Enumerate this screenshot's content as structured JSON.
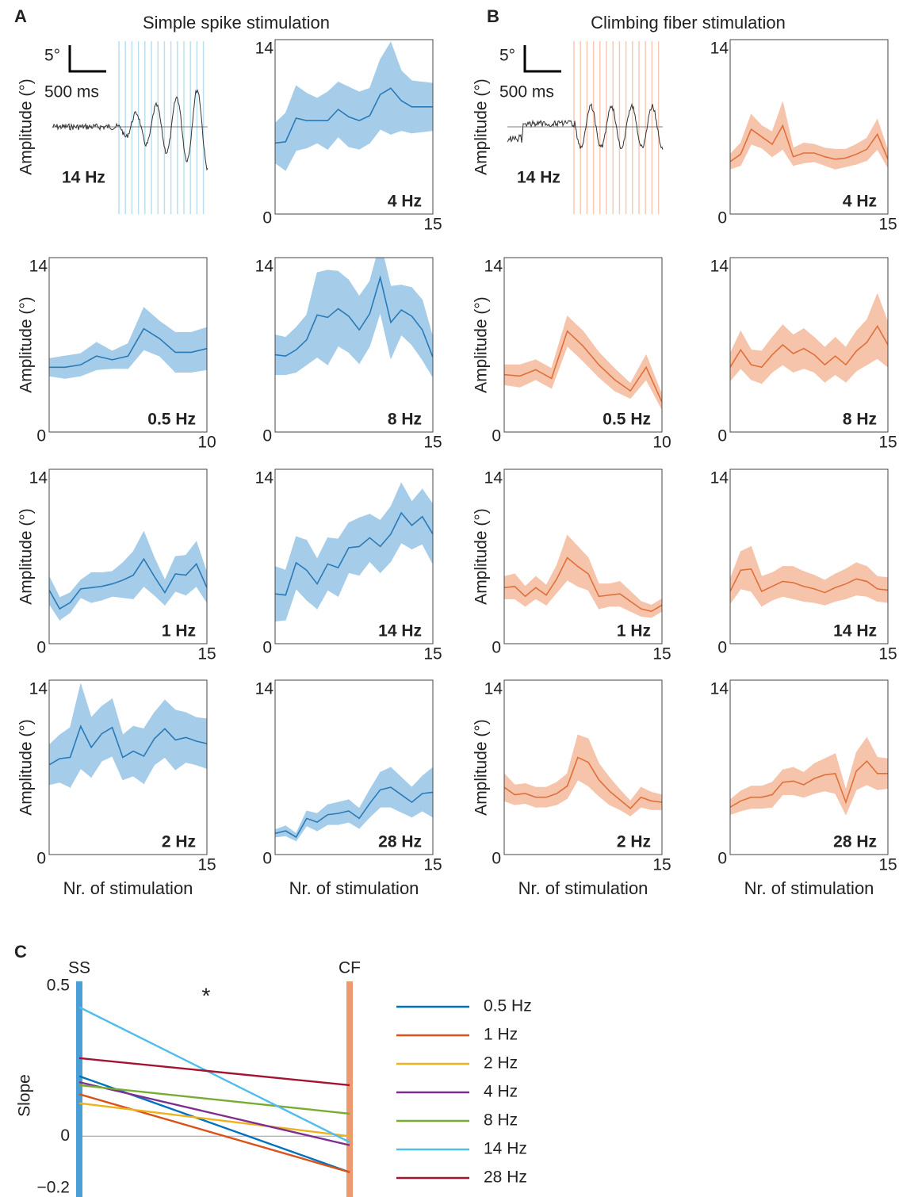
{
  "labels": {
    "A": "A",
    "B": "B",
    "C": "C",
    "ss_title": "Simple spike stimulation",
    "cf_title": "Climbing fiber stimulation"
  },
  "examples": [
    {
      "scale_amp": "5°",
      "scale_time": "500 ms",
      "freq": "14 Hz",
      "ylabel": "Amplitude (°)"
    },
    {
      "scale_amp": "5°",
      "scale_time": "500 ms",
      "freq": "14 Hz",
      "ylabel": "Amplitude (°)"
    }
  ],
  "chart_data": [
    {
      "type": "line",
      "label": "4 Hz",
      "x": [
        0,
        1,
        2,
        3,
        4,
        5,
        6,
        7,
        8,
        9,
        10,
        11,
        12,
        13,
        14,
        15
      ],
      "color": "#2a7ab8",
      "band_color": "#a5cde9",
      "values": [
        5.7,
        5.8,
        7.7,
        7.5,
        7.5,
        7.5,
        8.4,
        7.8,
        7.5,
        7.9,
        9.6,
        10.1,
        9.1,
        8.6,
        8.6,
        8.6
      ],
      "errors": [
        1.6,
        2.3,
        2.6,
        2.2,
        1.8,
        2.3,
        2.2,
        2.4,
        2.3,
        2.2,
        2.8,
        3.7,
        2.4,
        2.1,
        2.0,
        1.9
      ],
      "xlim": [
        0,
        15
      ],
      "ylim": [
        0,
        14
      ],
      "xticks": [
        15
      ],
      "yticks": [
        0,
        14
      ]
    },
    {
      "type": "line",
      "label": "0.5 Hz",
      "x": [
        0,
        1,
        2,
        3,
        4,
        5,
        6,
        7,
        8,
        9,
        10
      ],
      "color": "#2a7ab8",
      "band_color": "#a5cde9",
      "values": [
        5.2,
        5.2,
        5.4,
        6.1,
        5.8,
        6.1,
        8.3,
        7.5,
        6.4,
        6.4,
        6.7
      ],
      "errors": [
        0.7,
        0.9,
        0.9,
        1.1,
        0.7,
        1.0,
        1.7,
        1.4,
        1.6,
        1.6,
        1.7
      ],
      "xlim": [
        0,
        10
      ],
      "ylim": [
        0,
        14
      ],
      "xticks": [
        10
      ],
      "yticks": [
        0,
        14
      ],
      "ylabel": "Amplitude (°)"
    },
    {
      "type": "line",
      "label": "8 Hz",
      "x": [
        0,
        1,
        2,
        3,
        4,
        5,
        6,
        7,
        8,
        9,
        10,
        11,
        12,
        13,
        14,
        15
      ],
      "color": "#2a7ab8",
      "band_color": "#a5cde9",
      "values": [
        6.2,
        6.1,
        6.6,
        7.4,
        9.4,
        9.2,
        9.9,
        9.3,
        8.2,
        9.5,
        12.4,
        8.8,
        9.8,
        9.3,
        8.2,
        6.0
      ],
      "errors": [
        1.6,
        1.5,
        1.8,
        2.0,
        3.4,
        3.8,
        3.0,
        2.9,
        2.7,
        2.6,
        2.8,
        2.9,
        2.0,
        2.3,
        2.4,
        1.6
      ],
      "xlim": [
        0,
        15
      ],
      "ylim": [
        0,
        14
      ],
      "xticks": [
        15
      ],
      "yticks": [
        0,
        14
      ]
    },
    {
      "type": "line",
      "label": "1 Hz",
      "x": [
        0,
        1,
        2,
        3,
        4,
        5,
        6,
        7,
        8,
        9,
        10,
        11,
        12,
        13,
        14,
        15
      ],
      "color": "#2a7ab8",
      "band_color": "#a5cde9",
      "values": [
        4.3,
        2.8,
        3.3,
        4.4,
        4.5,
        4.6,
        4.8,
        5.1,
        5.5,
        6.8,
        5.4,
        4.1,
        5.6,
        5.5,
        6.4,
        4.5
      ],
      "errors": [
        1.1,
        0.9,
        0.8,
        0.7,
        1.2,
        1.1,
        1.0,
        1.4,
        1.9,
        2.2,
        1.5,
        1.0,
        1.4,
        1.6,
        1.8,
        1.2
      ],
      "xlim": [
        0,
        15
      ],
      "ylim": [
        0,
        14
      ],
      "xticks": [
        15
      ],
      "yticks": [
        0,
        14
      ],
      "ylabel": "Amplitude (°)"
    },
    {
      "type": "line",
      "label": "14 Hz",
      "x": [
        0,
        1,
        2,
        3,
        4,
        5,
        6,
        7,
        8,
        9,
        10,
        11,
        12,
        13,
        14,
        15
      ],
      "color": "#2a7ab8",
      "band_color": "#a5cde9",
      "values": [
        4.0,
        3.9,
        6.5,
        5.9,
        4.8,
        6.4,
        6.1,
        7.7,
        7.8,
        8.5,
        7.8,
        8.8,
        10.5,
        9.5,
        10.2,
        8.8
      ],
      "errors": [
        2.2,
        2.0,
        2.1,
        2.4,
        2.0,
        2.1,
        2.3,
        2.0,
        2.3,
        1.9,
        2.1,
        2.2,
        2.4,
        1.9,
        2.2,
        2.4
      ],
      "xlim": [
        0,
        15
      ],
      "ylim": [
        0,
        14
      ],
      "xticks": [
        15
      ],
      "yticks": [
        0,
        14
      ]
    },
    {
      "type": "line",
      "label": "2 Hz",
      "x": [
        0,
        1,
        2,
        3,
        4,
        5,
        6,
        7,
        8,
        9,
        10,
        11,
        12,
        13,
        14,
        15
      ],
      "color": "#2a7ab8",
      "band_color": "#a5cde9",
      "values": [
        7.2,
        7.7,
        7.8,
        10.3,
        8.6,
        9.7,
        10.2,
        7.8,
        8.3,
        7.9,
        9.3,
        10.1,
        9.2,
        9.4,
        9.1,
        8.9
      ],
      "errors": [
        1.6,
        1.9,
        2.4,
        3.4,
        2.4,
        2.2,
        2.3,
        1.8,
        2.0,
        2.2,
        2.1,
        2.3,
        2.4,
        2.0,
        1.9,
        2.0
      ],
      "xlim": [
        0,
        15
      ],
      "ylim": [
        0,
        14
      ],
      "xticks": [
        15
      ],
      "yticks": [
        0,
        14
      ],
      "ylabel": "Amplitude (°)",
      "xlabel": "Nr. of stimulation"
    },
    {
      "type": "line",
      "label": "28 Hz",
      "x": [
        0,
        1,
        2,
        3,
        4,
        5,
        6,
        7,
        8,
        9,
        10,
        11,
        12,
        13,
        14,
        15
      ],
      "color": "#2a7ab8",
      "band_color": "#a5cde9",
      "values": [
        1.7,
        1.9,
        1.4,
        2.9,
        2.6,
        3.2,
        3.3,
        3.5,
        2.9,
        4.1,
        5.2,
        5.4,
        4.8,
        4.2,
        4.9,
        5.0
      ],
      "errors": [
        0.3,
        0.4,
        0.3,
        0.6,
        0.7,
        0.8,
        0.9,
        0.9,
        0.8,
        1.1,
        1.4,
        1.6,
        1.4,
        1.2,
        1.4,
        2.0
      ],
      "xlim": [
        0,
        15
      ],
      "ylim": [
        0,
        14
      ],
      "xticks": [
        15
      ],
      "yticks": [
        0,
        14
      ],
      "xlabel": "Nr. of stimulation"
    },
    {
      "type": "line",
      "label": "4 Hz",
      "x": [
        0,
        1,
        2,
        3,
        4,
        5,
        6,
        7,
        8,
        9,
        10,
        11,
        12,
        13,
        14,
        15
      ],
      "color": "#e0703a",
      "band_color": "#f6c4ab",
      "values": [
        4.2,
        4.8,
        6.8,
        6.2,
        5.6,
        7.1,
        4.6,
        4.9,
        4.9,
        4.6,
        4.4,
        4.5,
        4.8,
        5.2,
        6.4,
        4.4
      ],
      "errors": [
        0.6,
        0.9,
        1.2,
        0.9,
        1.0,
        1.9,
        0.7,
        0.8,
        0.7,
        0.7,
        0.8,
        0.7,
        0.8,
        0.9,
        1.2,
        0.7
      ],
      "xlim": [
        0,
        15
      ],
      "ylim": [
        0,
        14
      ],
      "xticks": [
        15
      ],
      "yticks": [
        0,
        14
      ]
    },
    {
      "type": "line",
      "label": "0.5 Hz",
      "x": [
        0,
        1,
        2,
        3,
        4,
        5,
        6,
        7,
        8,
        9,
        10
      ],
      "color": "#e0703a",
      "band_color": "#f6c4ab",
      "values": [
        4.6,
        4.5,
        5.0,
        4.3,
        8.1,
        6.9,
        5.4,
        4.2,
        3.3,
        5.2,
        2.4
      ],
      "errors": [
        0.8,
        0.9,
        0.8,
        0.8,
        1.2,
        1.2,
        1.0,
        0.9,
        0.6,
        1.0,
        0.6
      ],
      "xlim": [
        0,
        10
      ],
      "ylim": [
        0,
        14
      ],
      "xticks": [
        10
      ],
      "yticks": [
        0,
        14
      ],
      "ylabel": "Amplitude (°)"
    },
    {
      "type": "line",
      "label": "8 Hz",
      "x": [
        0,
        1,
        2,
        3,
        4,
        5,
        6,
        7,
        8,
        9,
        10,
        11,
        12,
        13,
        14,
        15
      ],
      "color": "#e0703a",
      "band_color": "#f6c4ab",
      "values": [
        5.2,
        6.6,
        5.4,
        5.2,
        6.2,
        7.0,
        6.3,
        6.7,
        6.2,
        5.4,
        6.1,
        5.4,
        6.5,
        7.2,
        8.5,
        7.0
      ],
      "errors": [
        1.1,
        1.5,
        1.2,
        1.3,
        1.4,
        1.6,
        1.5,
        1.6,
        1.4,
        1.4,
        1.5,
        1.4,
        1.6,
        1.8,
        2.6,
        1.8
      ],
      "xlim": [
        0,
        15
      ],
      "ylim": [
        0,
        14
      ],
      "xticks": [
        15
      ],
      "yticks": [
        0,
        14
      ]
    },
    {
      "type": "line",
      "label": "1 Hz",
      "x": [
        0,
        1,
        2,
        3,
        4,
        5,
        6,
        7,
        8,
        9,
        10,
        11,
        12,
        13,
        14,
        15
      ],
      "color": "#e0703a",
      "band_color": "#f6c4ab",
      "values": [
        4.5,
        4.6,
        3.8,
        4.5,
        3.9,
        5.2,
        6.9,
        6.2,
        5.6,
        3.8,
        3.9,
        4.0,
        3.4,
        2.8,
        2.6,
        3.1
      ],
      "errors": [
        0.9,
        1.0,
        0.8,
        0.9,
        0.8,
        1.1,
        1.8,
        1.6,
        1.3,
        1.0,
        0.9,
        1.0,
        0.8,
        0.6,
        0.5,
        0.5
      ],
      "xlim": [
        0,
        15
      ],
      "ylim": [
        0,
        14
      ],
      "xticks": [
        15
      ],
      "yticks": [
        0,
        14
      ],
      "ylabel": "Amplitude (°)"
    },
    {
      "type": "line",
      "label": "14 Hz",
      "x": [
        0,
        1,
        2,
        3,
        4,
        5,
        6,
        7,
        8,
        9,
        10,
        11,
        12,
        13,
        14,
        15
      ],
      "color": "#e0703a",
      "band_color": "#f6c4ab",
      "values": [
        4.2,
        5.9,
        6.0,
        4.2,
        4.6,
        5.0,
        4.9,
        4.6,
        4.4,
        4.1,
        4.5,
        4.8,
        5.2,
        5.0,
        4.4,
        4.3
      ],
      "errors": [
        1.0,
        1.5,
        1.8,
        1.2,
        1.1,
        1.2,
        1.3,
        1.2,
        1.1,
        1.0,
        1.1,
        1.2,
        1.3,
        1.2,
        1.0,
        1.0
      ],
      "xlim": [
        0,
        15
      ],
      "ylim": [
        0,
        14
      ],
      "xticks": [
        15
      ],
      "yticks": [
        0,
        14
      ]
    },
    {
      "type": "line",
      "label": "2 Hz",
      "x": [
        0,
        1,
        2,
        3,
        4,
        5,
        6,
        7,
        8,
        9,
        10,
        11,
        12,
        13,
        14,
        15
      ],
      "color": "#e0703a",
      "band_color": "#f6c4ab",
      "values": [
        5.4,
        4.8,
        4.9,
        4.6,
        4.6,
        4.9,
        5.5,
        7.8,
        7.4,
        6.0,
        5.1,
        4.4,
        3.7,
        4.6,
        4.3,
        4.2
      ],
      "errors": [
        1.1,
        0.8,
        0.8,
        0.8,
        0.8,
        0.9,
        1.0,
        1.8,
        1.9,
        1.3,
        1.1,
        0.8,
        0.6,
        0.8,
        0.7,
        0.6
      ],
      "xlim": [
        0,
        15
      ],
      "ylim": [
        0,
        14
      ],
      "xticks": [
        15
      ],
      "yticks": [
        0,
        14
      ],
      "ylabel": "Amplitude (°)",
      "xlabel": "Nr. of stimulation"
    },
    {
      "type": "line",
      "label": "28 Hz",
      "x": [
        0,
        1,
        2,
        3,
        4,
        5,
        6,
        7,
        8,
        9,
        10,
        11,
        12,
        13,
        14,
        15
      ],
      "color": "#e0703a",
      "band_color": "#f6c4ab",
      "values": [
        3.8,
        4.3,
        4.6,
        4.6,
        4.8,
        5.8,
        5.9,
        5.6,
        6.1,
        6.4,
        6.5,
        4.2,
        6.7,
        7.5,
        6.5,
        6.5
      ],
      "errors": [
        0.6,
        0.8,
        0.9,
        0.9,
        1.0,
        1.0,
        1.1,
        1.0,
        1.2,
        1.3,
        1.6,
        1.0,
        1.5,
        1.9,
        1.3,
        1.2
      ],
      "xlim": [
        0,
        15
      ],
      "ylim": [
        0,
        14
      ],
      "xticks": [
        15
      ],
      "yticks": [
        0,
        14
      ],
      "xlabel": "Nr. of stimulation"
    },
    {
      "type": "slope",
      "categories": [
        "SS",
        "CF"
      ],
      "axis_colors": [
        "#4a9fd6",
        "#ee9a70"
      ],
      "ylabel": "Slope",
      "annotation": "*",
      "ylim": [
        -0.2,
        0.5
      ],
      "yticks": [
        {
          "value": -0.2,
          "label": "−0.2"
        },
        0,
        0.5
      ],
      "series": [
        {
          "name": "0.5 Hz",
          "color": "#0072bd",
          "values": [
            0.2,
            -0.12
          ]
        },
        {
          "name": "1 Hz",
          "color": "#d95319",
          "values": [
            0.14,
            -0.12
          ]
        },
        {
          "name": "2 Hz",
          "color": "#edb120",
          "values": [
            0.11,
            0.0
          ]
        },
        {
          "name": "4 Hz",
          "color": "#7e2f8e",
          "values": [
            0.18,
            -0.03
          ]
        },
        {
          "name": "8 Hz",
          "color": "#77ac30",
          "values": [
            0.17,
            0.075
          ]
        },
        {
          "name": "14 Hz",
          "color": "#4dbeee",
          "values": [
            0.43,
            -0.02
          ]
        },
        {
          "name": "28 Hz",
          "color": "#a2142f",
          "values": [
            0.26,
            0.17
          ]
        }
      ]
    }
  ]
}
